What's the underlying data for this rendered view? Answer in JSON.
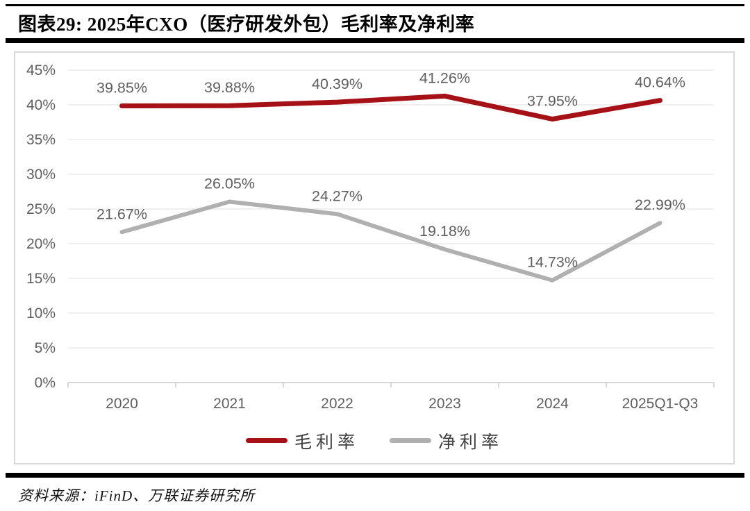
{
  "header": {
    "title": "图表29: 2025年CXO（医疗研发外包）毛利率及净利率"
  },
  "source": {
    "label": "资料来源：iFinD、万联证券研究所"
  },
  "chart_data": {
    "type": "line",
    "title": "2025年CXO（医疗研发外包）毛利率及净利率",
    "categories": [
      "2020",
      "2021",
      "2022",
      "2023",
      "2024",
      "2025Q1-Q3"
    ],
    "series": [
      {
        "name": "毛利率",
        "color": "#a61118",
        "width": 7,
        "values": [
          39.85,
          39.88,
          40.39,
          41.26,
          37.95,
          40.64
        ],
        "labels": [
          "39.85%",
          "39.88%",
          "40.39%",
          "41.26%",
          "37.95%",
          "40.64%"
        ]
      },
      {
        "name": "净利率",
        "color": "#b0b0b0",
        "width": 6,
        "values": [
          21.67,
          26.05,
          24.27,
          19.18,
          14.73,
          22.99
        ],
        "labels": [
          "21.67%",
          "26.05%",
          "24.27%",
          "19.18%",
          "14.73%",
          "22.99%"
        ]
      }
    ],
    "ylim": [
      0,
      45
    ],
    "yticks": [
      {
        "v": 45,
        "label": "45%"
      },
      {
        "v": 40,
        "label": "40%"
      },
      {
        "v": 35,
        "label": "35%"
      },
      {
        "v": 30,
        "label": "30%"
      },
      {
        "v": 25,
        "label": "25%"
      },
      {
        "v": 20,
        "label": "20%"
      },
      {
        "v": 15,
        "label": "15%"
      },
      {
        "v": 10,
        "label": "10%"
      },
      {
        "v": 5,
        "label": "5%"
      },
      {
        "v": 0,
        "label": "0%"
      }
    ],
    "grid": true,
    "legend_position": "bottom",
    "colors": {
      "grid": "#e7e7e7",
      "axis": "#c8c8c8",
      "text": "#5f5f5f"
    }
  }
}
